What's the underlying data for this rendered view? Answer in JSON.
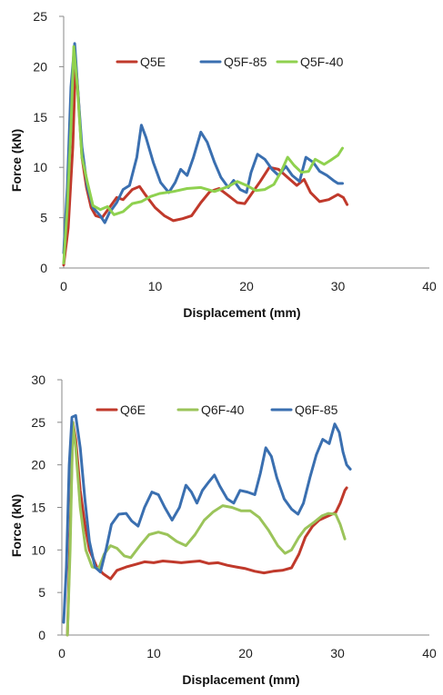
{
  "chart_data": [
    {
      "type": "line",
      "xlabel": "Displacement (mm)",
      "ylabel": "Force (kN)",
      "xlim": [
        0,
        40
      ],
      "ylim": [
        0,
        25
      ],
      "xticks": [
        0,
        10,
        20,
        30,
        40
      ],
      "yticks": [
        0,
        5,
        10,
        15,
        20,
        25
      ],
      "grid": false,
      "legend_position": "top-right",
      "series": [
        {
          "name": "Q5E",
          "color": "#c0392b",
          "points": [
            [
              0,
              0.3
            ],
            [
              0.5,
              4
            ],
            [
              1.0,
              12
            ],
            [
              1.3,
              20.5
            ],
            [
              1.6,
              17
            ],
            [
              2.0,
              11
            ],
            [
              2.5,
              8
            ],
            [
              3,
              6
            ],
            [
              3.5,
              5.2
            ],
            [
              4.2,
              5
            ],
            [
              5,
              6
            ],
            [
              5.8,
              7
            ],
            [
              6.5,
              6.8
            ],
            [
              7.5,
              7.8
            ],
            [
              8.3,
              8.1
            ],
            [
              9,
              7.2
            ],
            [
              10,
              6
            ],
            [
              11,
              5.2
            ],
            [
              12,
              4.7
            ],
            [
              13,
              4.9
            ],
            [
              14,
              5.2
            ],
            [
              15,
              6.5
            ],
            [
              16,
              7.6
            ],
            [
              17,
              7.9
            ],
            [
              18,
              7.2
            ],
            [
              19,
              6.5
            ],
            [
              19.8,
              6.4
            ],
            [
              20.5,
              7.3
            ],
            [
              21.5,
              8.6
            ],
            [
              22.5,
              10
            ],
            [
              23.5,
              9.8
            ],
            [
              24.5,
              9
            ],
            [
              25.5,
              8.2
            ],
            [
              26.3,
              8.8
            ],
            [
              27,
              7.5
            ],
            [
              28,
              6.6
            ],
            [
              29,
              6.8
            ],
            [
              30,
              7.3
            ],
            [
              30.6,
              7
            ],
            [
              31,
              6.3
            ]
          ]
        },
        {
          "name": "Q5F-85",
          "color": "#3a6fb0",
          "points": [
            [
              0,
              1.5
            ],
            [
              0.4,
              8
            ],
            [
              0.8,
              18
            ],
            [
              1.2,
              22.3
            ],
            [
              1.6,
              17
            ],
            [
              2,
              12
            ],
            [
              2.6,
              8
            ],
            [
              3.2,
              6
            ],
            [
              4,
              5.2
            ],
            [
              4.5,
              4.5
            ],
            [
              5,
              5.5
            ],
            [
              5.8,
              6.5
            ],
            [
              6.5,
              7.8
            ],
            [
              7.2,
              8.2
            ],
            [
              8,
              11
            ],
            [
              8.5,
              14.2
            ],
            [
              9,
              13
            ],
            [
              9.8,
              10.5
            ],
            [
              10.6,
              8.5
            ],
            [
              11.5,
              7.5
            ],
            [
              12.2,
              8.5
            ],
            [
              12.8,
              9.8
            ],
            [
              13.5,
              9.2
            ],
            [
              14.2,
              11
            ],
            [
              15,
              13.5
            ],
            [
              15.7,
              12.5
            ],
            [
              16.5,
              10.5
            ],
            [
              17.2,
              9
            ],
            [
              18,
              8
            ],
            [
              18.6,
              8.7
            ],
            [
              19.3,
              7.8
            ],
            [
              20,
              7.5
            ],
            [
              20.5,
              9.5
            ],
            [
              21.2,
              11.3
            ],
            [
              22,
              10.8
            ],
            [
              22.8,
              9.8
            ],
            [
              23.5,
              9.2
            ],
            [
              24.3,
              10.1
            ],
            [
              25,
              9.2
            ],
            [
              25.8,
              8.6
            ],
            [
              26.5,
              11
            ],
            [
              27.3,
              10.5
            ],
            [
              28,
              9.6
            ],
            [
              28.8,
              9.2
            ],
            [
              29.5,
              8.7
            ],
            [
              30,
              8.4
            ],
            [
              30.5,
              8.4
            ]
          ]
        },
        {
          "name": "Q5F-40",
          "color": "#8fd14f",
          "points": [
            [
              0,
              0.5
            ],
            [
              0.4,
              6
            ],
            [
              0.8,
              14
            ],
            [
              1.1,
              22
            ],
            [
              1.5,
              18
            ],
            [
              2,
              11
            ],
            [
              2.6,
              8.5
            ],
            [
              3.2,
              6.2
            ],
            [
              4,
              5.8
            ],
            [
              4.8,
              6.1
            ],
            [
              5.5,
              5.3
            ],
            [
              6.5,
              5.6
            ],
            [
              7.5,
              6.4
            ],
            [
              8.5,
              6.6
            ],
            [
              9.5,
              7.1
            ],
            [
              10.5,
              7.4
            ],
            [
              12,
              7.6
            ],
            [
              13.5,
              7.9
            ],
            [
              15,
              8
            ],
            [
              16.5,
              7.6
            ],
            [
              18,
              8.1
            ],
            [
              19,
              8.6
            ],
            [
              20,
              8.2
            ],
            [
              21,
              7.7
            ],
            [
              22,
              7.8
            ],
            [
              23,
              8.3
            ],
            [
              23.8,
              9.6
            ],
            [
              24.5,
              11
            ],
            [
              25.2,
              10.2
            ],
            [
              26,
              9.5
            ],
            [
              26.8,
              9.6
            ],
            [
              27.5,
              10.8
            ],
            [
              28.5,
              10.3
            ],
            [
              29.2,
              10.7
            ],
            [
              30,
              11.2
            ],
            [
              30.5,
              11.9
            ]
          ]
        }
      ]
    },
    {
      "type": "line",
      "xlabel": "Displacement (mm)",
      "ylabel": "Force (kN)",
      "xlim": [
        0,
        40
      ],
      "ylim": [
        0,
        30
      ],
      "xticks": [
        0,
        10,
        20,
        30,
        40
      ],
      "yticks": [
        0,
        5,
        10,
        15,
        20,
        25,
        30
      ],
      "grid": false,
      "legend_position": "top-right",
      "series": [
        {
          "name": "Q6E",
          "color": "#c0392b",
          "points": [
            [
              0.6,
              0
            ],
            [
              0.9,
              12
            ],
            [
              1.2,
              25
            ],
            [
              1.5,
              23
            ],
            [
              2,
              17
            ],
            [
              2.5,
              13
            ],
            [
              3,
              10
            ],
            [
              3.8,
              8
            ],
            [
              4.5,
              7.2
            ],
            [
              5.3,
              6.6
            ],
            [
              6,
              7.6
            ],
            [
              7,
              8
            ],
            [
              8,
              8.3
            ],
            [
              9,
              8.6
            ],
            [
              10,
              8.5
            ],
            [
              11,
              8.7
            ],
            [
              12,
              8.6
            ],
            [
              13,
              8.5
            ],
            [
              14,
              8.6
            ],
            [
              15,
              8.7
            ],
            [
              16,
              8.4
            ],
            [
              17,
              8.5
            ],
            [
              18,
              8.2
            ],
            [
              19,
              8
            ],
            [
              20,
              7.8
            ],
            [
              21,
              7.5
            ],
            [
              22,
              7.3
            ],
            [
              23,
              7.5
            ],
            [
              24,
              7.6
            ],
            [
              25,
              7.9
            ],
            [
              25.8,
              9.5
            ],
            [
              26.5,
              11.5
            ],
            [
              27.3,
              12.8
            ],
            [
              28,
              13.5
            ],
            [
              29,
              14
            ],
            [
              29.8,
              14.4
            ],
            [
              30.3,
              15.5
            ],
            [
              30.8,
              17
            ],
            [
              31,
              17.3
            ]
          ]
        },
        {
          "name": "Q6F-40",
          "color": "#9bc45a",
          "points": [
            [
              0.6,
              0
            ],
            [
              0.9,
              10
            ],
            [
              1.2,
              25
            ],
            [
              1.5,
              22
            ],
            [
              2,
              15
            ],
            [
              2.6,
              10
            ],
            [
              3.3,
              8
            ],
            [
              4,
              7.8
            ],
            [
              4.6,
              9.5
            ],
            [
              5.3,
              10.5
            ],
            [
              6,
              10.2
            ],
            [
              6.8,
              9.3
            ],
            [
              7.5,
              9.1
            ],
            [
              8.5,
              10.5
            ],
            [
              9.5,
              11.8
            ],
            [
              10.5,
              12.1
            ],
            [
              11.5,
              11.8
            ],
            [
              12.5,
              11
            ],
            [
              13.5,
              10.5
            ],
            [
              14.5,
              11.8
            ],
            [
              15.5,
              13.5
            ],
            [
              16.5,
              14.5
            ],
            [
              17.5,
              15.2
            ],
            [
              18.5,
              15
            ],
            [
              19.5,
              14.6
            ],
            [
              20.5,
              14.6
            ],
            [
              21.5,
              13.8
            ],
            [
              22.5,
              12.3
            ],
            [
              23.5,
              10.5
            ],
            [
              24.3,
              9.6
            ],
            [
              25,
              10
            ],
            [
              25.8,
              11.5
            ],
            [
              26.5,
              12.5
            ],
            [
              27.5,
              13.3
            ],
            [
              28.3,
              14
            ],
            [
              29,
              14.3
            ],
            [
              29.8,
              14.2
            ],
            [
              30.3,
              13
            ],
            [
              30.8,
              11.3
            ]
          ]
        },
        {
          "name": "Q6F-85",
          "color": "#3a6fb0",
          "points": [
            [
              0.2,
              1.5
            ],
            [
              0.5,
              8
            ],
            [
              0.8,
              20
            ],
            [
              1.1,
              25.6
            ],
            [
              1.5,
              25.8
            ],
            [
              2,
              22
            ],
            [
              2.5,
              16
            ],
            [
              3,
              11
            ],
            [
              3.6,
              8
            ],
            [
              4.2,
              7.4
            ],
            [
              4.8,
              10
            ],
            [
              5.4,
              13
            ],
            [
              6.2,
              14.2
            ],
            [
              7,
              14.3
            ],
            [
              7.6,
              13.4
            ],
            [
              8.3,
              12.8
            ],
            [
              9,
              15
            ],
            [
              9.8,
              16.8
            ],
            [
              10.5,
              16.5
            ],
            [
              11.2,
              15
            ],
            [
              12,
              13.5
            ],
            [
              12.8,
              15
            ],
            [
              13.5,
              17.6
            ],
            [
              14.1,
              16.8
            ],
            [
              14.7,
              15.5
            ],
            [
              15.3,
              17
            ],
            [
              16,
              18
            ],
            [
              16.6,
              18.8
            ],
            [
              17.2,
              17.5
            ],
            [
              18,
              16
            ],
            [
              18.7,
              15.5
            ],
            [
              19.4,
              17
            ],
            [
              20.2,
              16.8
            ],
            [
              21,
              16.5
            ],
            [
              21.6,
              19
            ],
            [
              22.2,
              22
            ],
            [
              22.8,
              21
            ],
            [
              23.4,
              18.5
            ],
            [
              24.2,
              16
            ],
            [
              25,
              14.8
            ],
            [
              25.7,
              14.2
            ],
            [
              26.3,
              15.5
            ],
            [
              27,
              18.5
            ],
            [
              27.7,
              21.2
            ],
            [
              28.4,
              23
            ],
            [
              29.1,
              22.5
            ],
            [
              29.7,
              24.8
            ],
            [
              30.2,
              23.8
            ],
            [
              30.6,
              21.5
            ],
            [
              31,
              20
            ],
            [
              31.4,
              19.5
            ]
          ]
        }
      ]
    }
  ]
}
